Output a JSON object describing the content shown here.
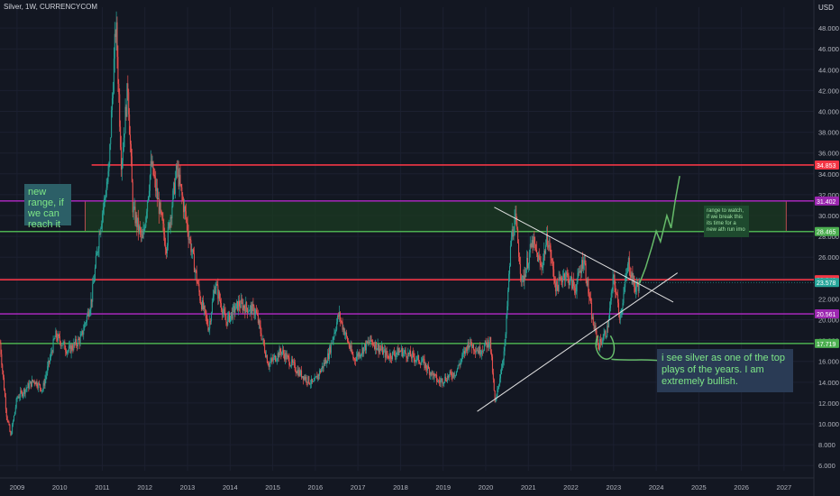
{
  "header": {
    "title": "Silver, 1W, CURRENCYCOM",
    "currency": "USD"
  },
  "annotations": {
    "new_range": "new range, if we can reach it",
    "range_watch": "range to watch, if we break this its time for a new ath run imo",
    "bullish": "i see silver as one of the top plays of the years. I am extremely bullish."
  },
  "colors": {
    "background": "#131722",
    "up": "#26a69a",
    "down": "#ef5350",
    "red_line": "#f23645",
    "purple_line": "#9c27b0",
    "green_line": "#4caf50",
    "range_fill": "#1b3b22",
    "drawing": "#e0e0e0",
    "forecast": "#66bb6a",
    "grid": "#1c2030"
  },
  "chart_data": {
    "type": "candlestick",
    "x_range": [
      2008.6,
      2027.7
    ],
    "y_range": [
      5.5,
      50.0
    ],
    "x_ticks": [
      "2009",
      "2010",
      "2011",
      "2012",
      "2013",
      "2014",
      "2015",
      "2016",
      "2017",
      "2018",
      "2019",
      "2020",
      "2021",
      "2022",
      "2023",
      "2024",
      "2025",
      "2026",
      "2027"
    ],
    "y_ticks": [
      "6.000",
      "8.000",
      "10.000",
      "12.000",
      "14.000",
      "16.000",
      "18.000",
      "20.000",
      "22.000",
      "24.000",
      "26.000",
      "28.000",
      "30.000",
      "32.000",
      "34.000",
      "36.000",
      "38.000",
      "40.000",
      "42.000",
      "44.000",
      "46.000",
      "48.000"
    ],
    "price_path": [
      [
        2008.6,
        17.8
      ],
      [
        2008.75,
        11.0
      ],
      [
        2008.85,
        8.8
      ],
      [
        2009.0,
        12.5
      ],
      [
        2009.4,
        14.2
      ],
      [
        2009.6,
        13.3
      ],
      [
        2009.9,
        18.5
      ],
      [
        2010.2,
        17.0
      ],
      [
        2010.5,
        18.2
      ],
      [
        2010.75,
        22.0
      ],
      [
        2010.95,
        29.0
      ],
      [
        2011.15,
        34.0
      ],
      [
        2011.32,
        48.6
      ],
      [
        2011.45,
        35.0
      ],
      [
        2011.6,
        42.5
      ],
      [
        2011.72,
        30.5
      ],
      [
        2011.95,
        27.5
      ],
      [
        2012.15,
        35.0
      ],
      [
        2012.5,
        27.0
      ],
      [
        2012.75,
        34.5
      ],
      [
        2012.95,
        30.0
      ],
      [
        2013.3,
        22.0
      ],
      [
        2013.5,
        19.2
      ],
      [
        2013.65,
        23.5
      ],
      [
        2013.9,
        19.8
      ],
      [
        2014.2,
        21.5
      ],
      [
        2014.6,
        20.8
      ],
      [
        2014.9,
        15.7
      ],
      [
        2015.2,
        17.0
      ],
      [
        2015.6,
        15.0
      ],
      [
        2015.95,
        13.8
      ],
      [
        2016.3,
        16.5
      ],
      [
        2016.55,
        20.5
      ],
      [
        2016.9,
        16.2
      ],
      [
        2017.3,
        18.0
      ],
      [
        2017.7,
        16.5
      ],
      [
        2018.0,
        17.0
      ],
      [
        2018.5,
        16.0
      ],
      [
        2018.9,
        14.0
      ],
      [
        2019.3,
        15.0
      ],
      [
        2019.6,
        17.8
      ],
      [
        2019.85,
        17.0
      ],
      [
        2020.1,
        18.0
      ],
      [
        2020.22,
        11.8
      ],
      [
        2020.45,
        17.5
      ],
      [
        2020.6,
        28.0
      ],
      [
        2020.7,
        29.5
      ],
      [
        2020.85,
        23.5
      ],
      [
        2021.1,
        27.5
      ],
      [
        2021.3,
        25.0
      ],
      [
        2021.45,
        28.0
      ],
      [
        2021.65,
        23.0
      ],
      [
        2021.85,
        24.5
      ],
      [
        2022.1,
        23.0
      ],
      [
        2022.3,
        26.0
      ],
      [
        2022.5,
        20.0
      ],
      [
        2022.65,
        17.5
      ],
      [
        2022.85,
        19.0
      ],
      [
        2023.0,
        24.0
      ],
      [
        2023.15,
        20.2
      ],
      [
        2023.35,
        25.5
      ],
      [
        2023.5,
        23.0
      ],
      [
        2023.6,
        23.4
      ]
    ],
    "forecast_path": [
      [
        2023.6,
        23.4
      ],
      [
        2023.75,
        25.0
      ],
      [
        2023.9,
        27.0
      ],
      [
        2024.0,
        28.5
      ],
      [
        2024.1,
        27.5
      ],
      [
        2024.25,
        30.0
      ],
      [
        2024.35,
        28.8
      ],
      [
        2024.45,
        31.5
      ],
      [
        2024.55,
        33.8
      ]
    ],
    "last_price": "23.578",
    "horizontal_levels": [
      {
        "value": 34.853,
        "label": "34.853",
        "color": "#f23645"
      },
      {
        "value": 31.402,
        "label": "31.402",
        "color": "#9c27b0"
      },
      {
        "value": 28.465,
        "label": "28.465",
        "color": "#4caf50"
      },
      {
        "value": 23.842,
        "label": "23.842",
        "color": "#f23645"
      },
      {
        "value": 20.561,
        "label": "20.561",
        "color": "#9c27b0"
      },
      {
        "value": 17.719,
        "label": "17.719",
        "color": "#4caf50"
      }
    ],
    "range_box": {
      "x0": 2010.6,
      "x1": 2027.05,
      "y0": 28.465,
      "y1": 31.402
    },
    "trendlines": [
      {
        "x0": 2020.2,
        "y0": 30.8,
        "x1": 2024.4,
        "y1": 21.7
      },
      {
        "x0": 2019.8,
        "y0": 11.2,
        "x1": 2024.5,
        "y1": 24.5
      }
    ]
  }
}
